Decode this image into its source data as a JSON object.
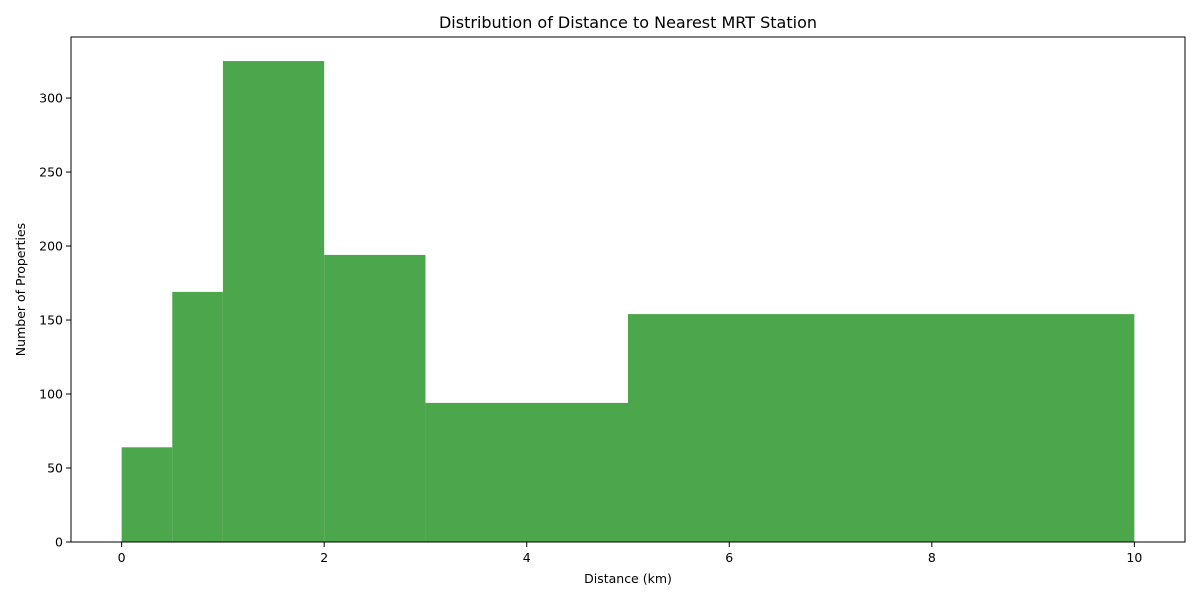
{
  "chart_data": {
    "type": "bar",
    "subtype": "histogram",
    "title": "Distribution of Distance to Nearest MRT Station",
    "xlabel": "Distance (km)",
    "ylabel": "Number of Properties",
    "bins": [
      {
        "x0": 0,
        "x1": 0.5,
        "count": 64
      },
      {
        "x0": 0.5,
        "x1": 1,
        "count": 169
      },
      {
        "x0": 1,
        "x1": 2,
        "count": 325
      },
      {
        "x0": 2,
        "x1": 3,
        "count": 194
      },
      {
        "x0": 3,
        "x1": 5,
        "count": 94
      },
      {
        "x0": 5,
        "x1": 10,
        "count": 154
      }
    ],
    "xlim": [
      -0.5,
      10.5
    ],
    "ylim": [
      0,
      341.25
    ],
    "xticks": [
      0,
      2,
      4,
      6,
      8,
      10
    ],
    "yticks": [
      0,
      50,
      100,
      150,
      200,
      250,
      300
    ],
    "bar_color": "#4ca64c",
    "grid": false,
    "legend": "none"
  }
}
